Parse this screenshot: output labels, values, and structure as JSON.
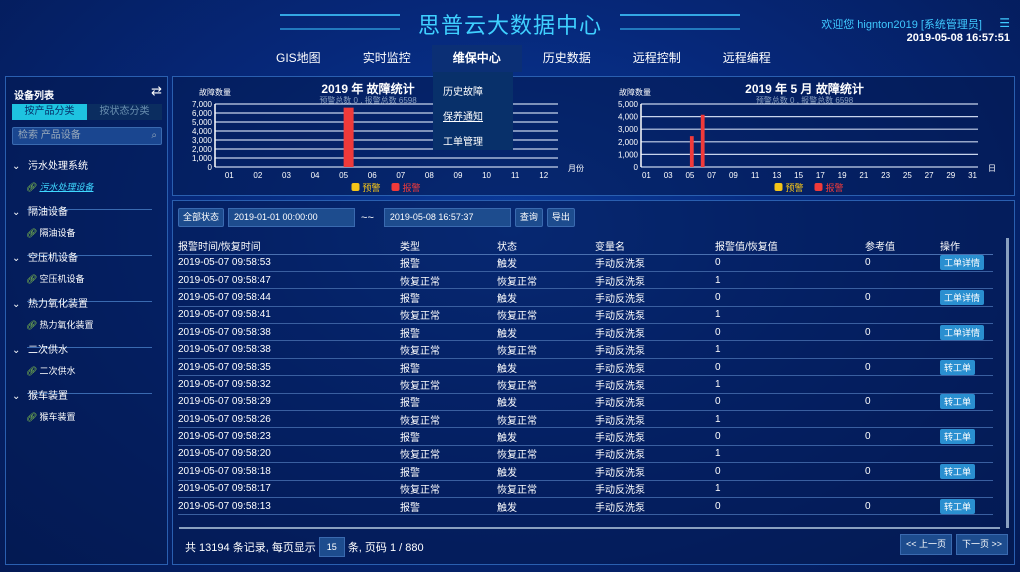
{
  "header": {
    "title": "思普云大数据中心",
    "welcome": "欢迎您  hignton2019 [系统管理员]",
    "datetime": "2019-05-08 16:57:51",
    "menu_icon": "list-icon"
  },
  "nav": [
    "GIS地图",
    "实时监控",
    "维保中心",
    "历史数据",
    "远程控制",
    "远程编程"
  ],
  "dropdown": [
    "历史故障",
    "保养通知",
    "工单管理"
  ],
  "sidebar": {
    "title": "设备列表",
    "tabs": [
      "按产品分类",
      "按状态分类"
    ],
    "search_placeholder": "检索 产品设备",
    "groups": [
      {
        "name": "污水处理系统",
        "item": "污水处理设备"
      },
      {
        "name": "隔油设备",
        "item": "隔油设备"
      },
      {
        "name": "空压机设备",
        "item": "空压机设备"
      },
      {
        "name": "热力氧化装置",
        "item": "热力氧化装置"
      },
      {
        "name": "二次供水",
        "item": "二次供水"
      },
      {
        "name": "猴车装置",
        "item": "猴车装置"
      }
    ]
  },
  "chart_data": [
    {
      "type": "bar",
      "title": "2019 年 故障统计",
      "subtitle": "预警总数 0 , 报警总数 6598",
      "ylabel": "故障数量",
      "xlabel": "月份",
      "ylim": [
        0,
        7000
      ],
      "yticks": [
        "0",
        "1,000",
        "2,000",
        "3,000",
        "4,000",
        "5,000",
        "6,000",
        "7,000"
      ],
      "categories": [
        "01",
        "02",
        "03",
        "04",
        "05",
        "06",
        "07",
        "08",
        "09",
        "10",
        "11",
        "12"
      ],
      "series": [
        {
          "name": "预警",
          "color": "#f5c518",
          "values": [
            0,
            0,
            0,
            0,
            0,
            0,
            0,
            0,
            0,
            0,
            0,
            0
          ]
        },
        {
          "name": "报警",
          "color": "#f03a3a",
          "values": [
            0,
            0,
            0,
            0,
            6598,
            0,
            0,
            0,
            0,
            0,
            0,
            0
          ]
        }
      ]
    },
    {
      "type": "bar",
      "title": "2019 年 5 月 故障统计",
      "subtitle": "预警总数 0 , 报警总数 6598",
      "ylabel": "故障数量",
      "xlabel": "日",
      "ylim": [
        0,
        5000
      ],
      "yticks": [
        "0",
        "1,000",
        "2,000",
        "3,000",
        "4,000",
        "5,000"
      ],
      "categories": [
        "01",
        "02",
        "03",
        "04",
        "05",
        "06",
        "07",
        "08",
        "09",
        "10",
        "11",
        "12",
        "13",
        "14",
        "15",
        "16",
        "17",
        "18",
        "19",
        "20",
        "21",
        "22",
        "23",
        "24",
        "25",
        "26",
        "27",
        "28",
        "29",
        "30",
        "31"
      ],
      "series": [
        {
          "name": "预警",
          "color": "#f5c518",
          "values": [
            0,
            0,
            0,
            0,
            0,
            0,
            0,
            0,
            0,
            0,
            0,
            0,
            0,
            0,
            0,
            0,
            0,
            0,
            0,
            0,
            0,
            0,
            0,
            0,
            0,
            0,
            0,
            0,
            0,
            0,
            0
          ]
        },
        {
          "name": "报警",
          "color": "#f03a3a",
          "values": [
            0,
            0,
            0,
            0,
            2450,
            4148,
            0,
            0,
            0,
            0,
            0,
            0,
            0,
            0,
            0,
            0,
            0,
            0,
            0,
            0,
            0,
            0,
            0,
            0,
            0,
            0,
            0,
            0,
            0,
            0,
            0
          ]
        }
      ]
    }
  ],
  "toolbar": {
    "status": "全部状态",
    "start": "2019-01-01 00:00:00",
    "sep": "~~",
    "end": "2019-05-08 16:57:37",
    "query": "查询",
    "export": "导出"
  },
  "table": {
    "headers": [
      "报警时间/恢复时间",
      "类型",
      "状态",
      "变量名",
      "报警值/恢复值",
      "参考值",
      "操作"
    ],
    "rows": [
      [
        "2019-05-07 09:58:53",
        "报警",
        "触发",
        "手动反洗泵",
        "0",
        "0",
        "工单详情"
      ],
      [
        "2019-05-07 09:58:47",
        "恢复正常",
        "恢复正常",
        "手动反洗泵",
        "1",
        "",
        ""
      ],
      [
        "2019-05-07 09:58:44",
        "报警",
        "触发",
        "手动反洗泵",
        "0",
        "0",
        "工单详情"
      ],
      [
        "2019-05-07 09:58:41",
        "恢复正常",
        "恢复正常",
        "手动反洗泵",
        "1",
        "",
        ""
      ],
      [
        "2019-05-07 09:58:38",
        "报警",
        "触发",
        "手动反洗泵",
        "0",
        "0",
        "工单详情"
      ],
      [
        "2019-05-07 09:58:38",
        "恢复正常",
        "恢复正常",
        "手动反洗泵",
        "1",
        "",
        ""
      ],
      [
        "2019-05-07 09:58:35",
        "报警",
        "触发",
        "手动反洗泵",
        "0",
        "0",
        "转工单"
      ],
      [
        "2019-05-07 09:58:32",
        "恢复正常",
        "恢复正常",
        "手动反洗泵",
        "1",
        "",
        ""
      ],
      [
        "2019-05-07 09:58:29",
        "报警",
        "触发",
        "手动反洗泵",
        "0",
        "0",
        "转工单"
      ],
      [
        "2019-05-07 09:58:26",
        "恢复正常",
        "恢复正常",
        "手动反洗泵",
        "1",
        "",
        ""
      ],
      [
        "2019-05-07 09:58:23",
        "报警",
        "触发",
        "手动反洗泵",
        "0",
        "0",
        "转工单"
      ],
      [
        "2019-05-07 09:58:20",
        "恢复正常",
        "恢复正常",
        "手动反洗泵",
        "1",
        "",
        ""
      ],
      [
        "2019-05-07 09:58:18",
        "报警",
        "触发",
        "手动反洗泵",
        "0",
        "0",
        "转工单"
      ],
      [
        "2019-05-07 09:58:17",
        "恢复正常",
        "恢复正常",
        "手动反洗泵",
        "1",
        "",
        ""
      ],
      [
        "2019-05-07 09:58:13",
        "报警",
        "触发",
        "手动反洗泵",
        "0",
        "0",
        "转工单"
      ]
    ]
  },
  "footer": {
    "pre": "共 13194 条记录, 每页显示",
    "page_size": "15",
    "post": "条, 页码 1 / 880",
    "prev": "<< 上一页",
    "next": "下一页 >>"
  }
}
